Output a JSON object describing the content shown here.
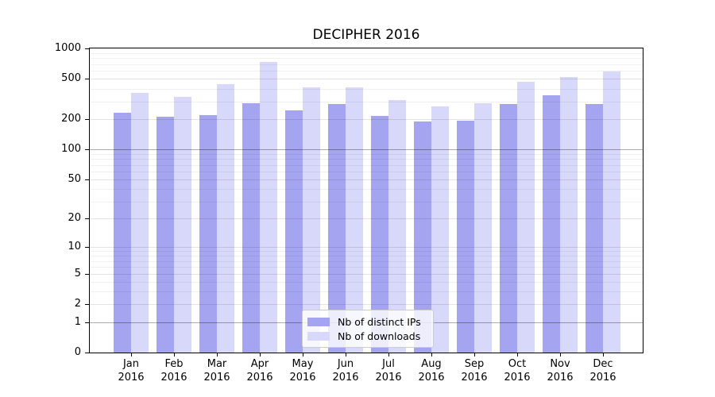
{
  "title": "DECIPHER 2016",
  "chart_data": {
    "type": "bar",
    "title": "DECIPHER 2016",
    "categories": [
      "Jan",
      "Feb",
      "Mar",
      "Apr",
      "May",
      "Jun",
      "Jul",
      "Aug",
      "Sep",
      "Oct",
      "Nov",
      "Dec"
    ],
    "category_year": "2016",
    "series": [
      {
        "name": "Nb of distinct IPs",
        "color": "#a4a4f0",
        "values": [
          230,
          212,
          218,
          286,
          244,
          284,
          217,
          191,
          193,
          280,
          346,
          282
        ]
      },
      {
        "name": "Nb of downloads",
        "color": "#d8d8fa",
        "values": [
          365,
          330,
          443,
          733,
          415,
          410,
          308,
          268,
          285,
          468,
          522,
          595
        ]
      }
    ],
    "xlabel": "",
    "ylabel": "",
    "yscale": "log1p",
    "ylim": [
      0,
      1000
    ],
    "yticks": [
      1000,
      500,
      200,
      100,
      50,
      20,
      10,
      5,
      2,
      1,
      0
    ],
    "minor_gridlines": [
      3,
      4,
      6,
      7,
      8,
      9,
      30,
      40,
      60,
      70,
      80,
      90,
      300,
      400,
      600,
      700,
      800,
      900
    ],
    "emphasized_gridlines": [
      1,
      100
    ],
    "grid": true,
    "legend_position": "lower center"
  },
  "legend": {
    "items": [
      {
        "label": "Nb of distinct IPs"
      },
      {
        "label": "Nb of downloads"
      }
    ]
  },
  "colors": {
    "distinct_ips": "#a4a4f0",
    "downloads": "#d8d8fa",
    "grid_major": "rgba(0,0,0,0.11)",
    "grid_minor": "rgba(0,0,0,0.06)",
    "grid_emphasized": "rgba(0,0,0,0.33)",
    "spine": "#000000",
    "background": "#ffffff"
  }
}
